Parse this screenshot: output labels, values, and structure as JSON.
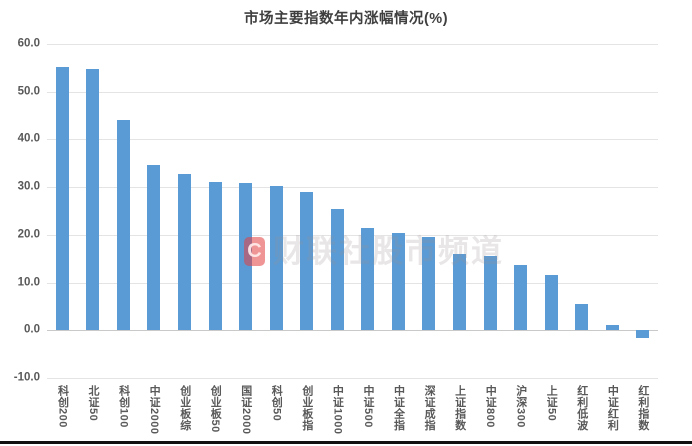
{
  "title": "市场主要指数年内涨幅情况(%)",
  "watermark": {
    "logo_letter": "C",
    "text": "财联社股市频道"
  },
  "colors": {
    "bar": "#5B9BD5",
    "grid": "#e4e4e4",
    "zero_line": "#c9c9c9",
    "axis_text": "#595959",
    "title_text": "#3f3f3f",
    "watermark_red": "#e43e3e"
  },
  "y_axis": {
    "ticks": [
      60,
      50,
      40,
      30,
      20,
      10,
      0,
      -10
    ],
    "tick_labels": [
      "60.0",
      "50.0",
      "40.0",
      "30.0",
      "20.0",
      "10.0",
      "0.0",
      "-10.0"
    ]
  },
  "chart_data": {
    "type": "bar",
    "title": "市场主要指数年内涨幅情况(%)",
    "categories": [
      "科创200",
      "北证50",
      "科创100",
      "中证2000",
      "创业板综",
      "创业板50",
      "国证2000",
      "科创50",
      "创业板指",
      "中证1000",
      "中证500",
      "中证全指",
      "深证成指",
      "上证指数",
      "中证800",
      "沪深300",
      "上证50",
      "红利低波",
      "中证红利",
      "红利指数"
    ],
    "values": [
      55.1,
      54.7,
      44.0,
      34.7,
      32.8,
      31.1,
      30.9,
      30.3,
      29.0,
      25.5,
      21.4,
      20.3,
      19.5,
      15.9,
      15.5,
      13.7,
      11.5,
      5.5,
      1.2,
      -1.7
    ],
    "xlabel": "",
    "ylabel": "",
    "ylim": [
      -10,
      60
    ],
    "grid": true,
    "legend": false
  }
}
